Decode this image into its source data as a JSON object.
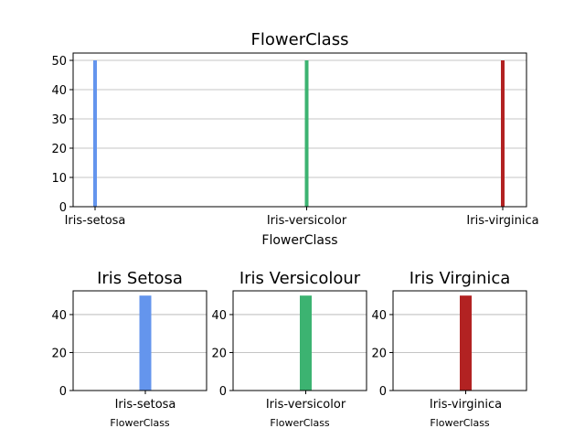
{
  "chart_data": [
    {
      "type": "bar",
      "title": "FlowerClass",
      "xlabel": "FlowerClass",
      "ylabel": "",
      "categories": [
        "Iris-setosa",
        "Iris-versicolor",
        "Iris-virginica"
      ],
      "values": [
        50,
        50,
        50
      ],
      "colors": [
        "#6495ed",
        "#3cb371",
        "#b22222"
      ],
      "ylim": [
        0,
        52.5
      ],
      "yticks": [
        0,
        10,
        20,
        30,
        40,
        50
      ],
      "grid": "y"
    },
    {
      "type": "bar",
      "title": "Iris Setosa",
      "xlabel": "FlowerClass",
      "ylabel": "",
      "categories": [
        "Iris-setosa"
      ],
      "values": [
        50
      ],
      "colors": [
        "#6495ed"
      ],
      "ylim": [
        0,
        52.5
      ],
      "yticks": [
        0,
        20,
        40
      ],
      "grid": "y"
    },
    {
      "type": "bar",
      "title": "Iris Versicolour",
      "xlabel": "FlowerClass",
      "ylabel": "",
      "categories": [
        "Iris-versicolor"
      ],
      "values": [
        50
      ],
      "colors": [
        "#3cb371"
      ],
      "ylim": [
        0,
        52.5
      ],
      "yticks": [
        0,
        20,
        40
      ],
      "grid": "y"
    },
    {
      "type": "bar",
      "title": "Iris Virginica",
      "xlabel": "FlowerClass",
      "ylabel": "",
      "categories": [
        "Iris-virginica"
      ],
      "values": [
        50
      ],
      "colors": [
        "#b22222"
      ],
      "ylim": [
        0,
        52.5
      ],
      "yticks": [
        0,
        20,
        40
      ],
      "grid": "y"
    }
  ]
}
